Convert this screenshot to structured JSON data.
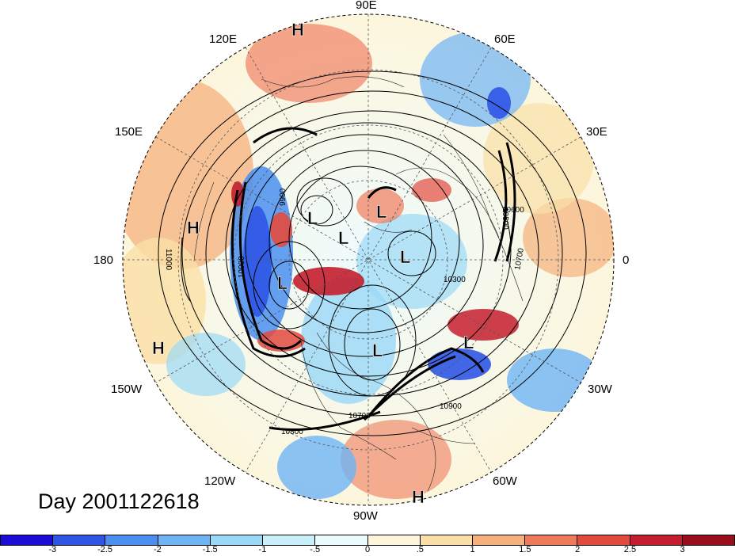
{
  "title": "Day 2001122618",
  "longitude_labels": {
    "e90": "90E",
    "e60": "60E",
    "e120": "120E",
    "e30": "30E",
    "e150": "150E",
    "w180": "180",
    "zero": "0",
    "w150": "150W",
    "w30": "30W",
    "w120": "120W",
    "w60": "60W",
    "w90": "90W"
  },
  "pressure_centers": {
    "high": "H",
    "low": "L"
  },
  "contour_labels": [
    "10900",
    "11000",
    "10300",
    "10700",
    "10800",
    "10600",
    "10500",
    "9900",
    "10900",
    "10700"
  ],
  "colorbar": {
    "ticks": [
      "-3",
      "-2.5",
      "-2",
      "-1.5",
      "-1",
      "-.5",
      "0",
      ".5",
      "1",
      "1.5",
      "2",
      "2.5",
      "3"
    ],
    "colors": [
      "#1d0bd6",
      "#2e55e6",
      "#4a8ff0",
      "#6eb4f5",
      "#9ad8f7",
      "#c8effa",
      "#eefbfd",
      "#fdf6dc",
      "#fae0a6",
      "#f5b07b",
      "#ef7a5a",
      "#e24a3e",
      "#c41e2e",
      "#9a0d1d"
    ]
  }
}
